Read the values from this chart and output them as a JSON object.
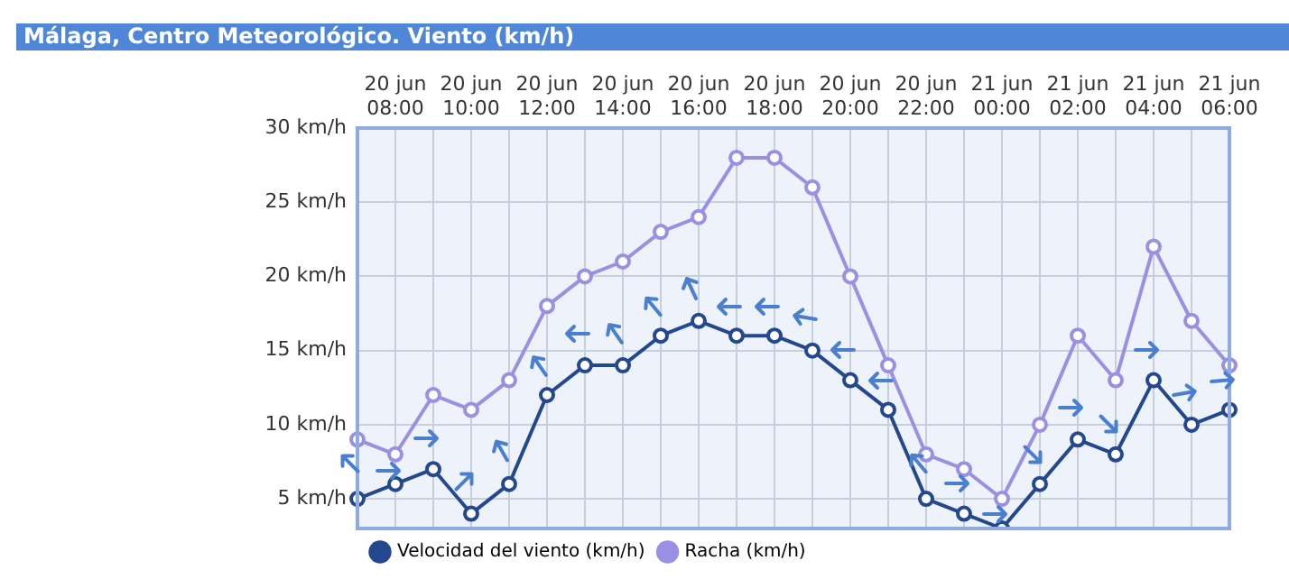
{
  "chart_data": {
    "type": "line",
    "title": "Málaga, Centro Meteorológico. Viento (km/h)",
    "categories": [
      null,
      "20 jun 08:00",
      null,
      "20 jun 10:00",
      null,
      "20 jun 12:00",
      null,
      "20 jun 14:00",
      null,
      "20 jun 16:00",
      null,
      "20 jun 18:00",
      null,
      "20 jun 20:00",
      null,
      "20 jun 22:00",
      null,
      "21 jun 00:00",
      null,
      "21 jun 02:00",
      null,
      "21 jun 04:00",
      null,
      "21 jun 06:00"
    ],
    "series": [
      {
        "name": "Velocidad del viento (km/h)",
        "color": "#24488f",
        "values": [
          5,
          6,
          7,
          4,
          6,
          12,
          14,
          14,
          16,
          17,
          16,
          16,
          15,
          13,
          11,
          5,
          4,
          3,
          6,
          9,
          8,
          13,
          10,
          11
        ]
      },
      {
        "name": "Racha (km/h)",
        "color": "#9a90e3",
        "values": [
          9,
          8,
          12,
          11,
          13,
          18,
          20,
          21,
          23,
          24,
          28,
          28,
          26,
          20,
          14,
          8,
          7,
          5,
          10,
          16,
          13,
          22,
          17,
          14
        ]
      }
    ],
    "ylim": [
      3,
      30
    ],
    "yticks": [
      {
        "value": 5,
        "label": "5 km/h"
      },
      {
        "value": 10,
        "label": "10 km/h"
      },
      {
        "value": 15,
        "label": "15 km/h"
      },
      {
        "value": 20,
        "label": "20 km/h"
      },
      {
        "value": 25,
        "label": "25 km/h"
      },
      {
        "value": 30,
        "label": "30 km/h"
      }
    ],
    "grid": true,
    "legend": "bottom left",
    "marker": "circle",
    "line_style": "solid"
  }
}
